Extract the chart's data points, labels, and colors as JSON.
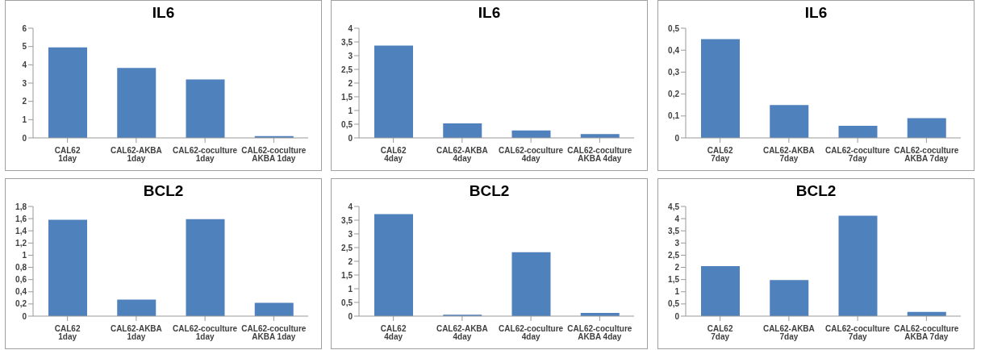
{
  "chart_data": [
    {
      "type": "bar",
      "title": "IL6",
      "categories": [
        "CAL62 1day",
        "CAL62-AKBA 1day",
        "CAL62-coculture 1day",
        "CAL62-coculture AKBA 1day"
      ],
      "values": [
        4.95,
        3.83,
        3.2,
        0.1
      ],
      "color": "#4f81bd",
      "ylim": [
        0,
        6
      ],
      "yticks": [
        0,
        1,
        2,
        3,
        4,
        5,
        6
      ],
      "grid": false,
      "legend": false
    },
    {
      "type": "bar",
      "title": "IL6",
      "categories": [
        "CAL62 4day",
        "CAL62-AKBA 4day",
        "CAL62-coculture 4day",
        "CAL62-coculture AKBA 4day"
      ],
      "values": [
        3.37,
        0.53,
        0.27,
        0.14
      ],
      "color": "#4f81bd",
      "ylim": [
        0,
        4
      ],
      "yticks": [
        0,
        {
          "value": 0.5,
          "label": "0,5"
        },
        1,
        {
          "value": 1.5,
          "label": "1,5"
        },
        2,
        {
          "value": 2.5,
          "label": "2,5"
        },
        3,
        {
          "value": 3.5,
          "label": "3,5"
        },
        4
      ],
      "grid": false,
      "legend": false
    },
    {
      "type": "bar",
      "title": "IL6",
      "categories": [
        "CAL62 7day",
        "CAL62-AKBA 7day",
        "CAL62-coculture 7day",
        "CAL62-coculture AKBA 7day"
      ],
      "values": [
        0.45,
        0.15,
        0.055,
        0.09
      ],
      "color": "#4f81bd",
      "ylim": [
        0,
        0.5
      ],
      "yticks": [
        0,
        {
          "value": 0.1,
          "label": "0,1"
        },
        {
          "value": 0.2,
          "label": "0,2"
        },
        {
          "value": 0.3,
          "label": "0,3"
        },
        {
          "value": 0.4,
          "label": "0,4"
        },
        {
          "value": 0.5,
          "label": "0,5"
        }
      ],
      "grid": false,
      "legend": false
    },
    {
      "type": "bar",
      "title": "BCL2",
      "categories": [
        "CAL62 1day",
        "CAL62-AKBA 1day",
        "CAL62-coculture 1day",
        "CAL62-coculture AKBA 1day"
      ],
      "values": [
        1.58,
        0.27,
        1.59,
        0.22
      ],
      "color": "#4f81bd",
      "ylim": [
        0,
        1.8
      ],
      "yticks": [
        0,
        {
          "value": 0.2,
          "label": "0,2"
        },
        {
          "value": 0.4,
          "label": "0,4"
        },
        {
          "value": 0.6,
          "label": "0,6"
        },
        {
          "value": 0.8,
          "label": "0,8"
        },
        1,
        {
          "value": 1.2,
          "label": "1,2"
        },
        {
          "value": 1.4,
          "label": "1,4"
        },
        {
          "value": 1.6,
          "label": "1,6"
        },
        {
          "value": 1.8,
          "label": "1,8"
        }
      ],
      "grid": false,
      "legend": false
    },
    {
      "type": "bar",
      "title": "BCL2",
      "categories": [
        "CAL62 4day",
        "CAL62-AKBA 4day",
        "CAL62-coculture 4day",
        "CAL62-coculture AKBA 4day"
      ],
      "values": [
        3.72,
        0.05,
        2.33,
        0.12
      ],
      "color": "#4f81bd",
      "ylim": [
        0,
        4
      ],
      "yticks": [
        0,
        {
          "value": 0.5,
          "label": "0,5"
        },
        1,
        {
          "value": 1.5,
          "label": "1,5"
        },
        2,
        {
          "value": 2.5,
          "label": "2,5"
        },
        3,
        {
          "value": 3.5,
          "label": "3,5"
        },
        4
      ],
      "grid": false,
      "legend": false
    },
    {
      "type": "bar",
      "title": "BCL2",
      "categories": [
        "CAL62 7day",
        "CAL62-AKBA 7day",
        "CAL62-coculture 7day",
        "CAL62-coculture AKBA 7day"
      ],
      "values": [
        2.05,
        1.48,
        4.12,
        0.17
      ],
      "color": "#4f81bd",
      "ylim": [
        0,
        4.5
      ],
      "yticks": [
        0,
        {
          "value": 0.5,
          "label": "0,5"
        },
        1,
        {
          "value": 1.5,
          "label": "1,5"
        },
        2,
        {
          "value": 2.5,
          "label": "2,5"
        },
        3,
        {
          "value": 3.5,
          "label": "3,5"
        },
        4,
        {
          "value": 4.5,
          "label": "4,5"
        }
      ],
      "grid": false,
      "legend": false
    }
  ]
}
